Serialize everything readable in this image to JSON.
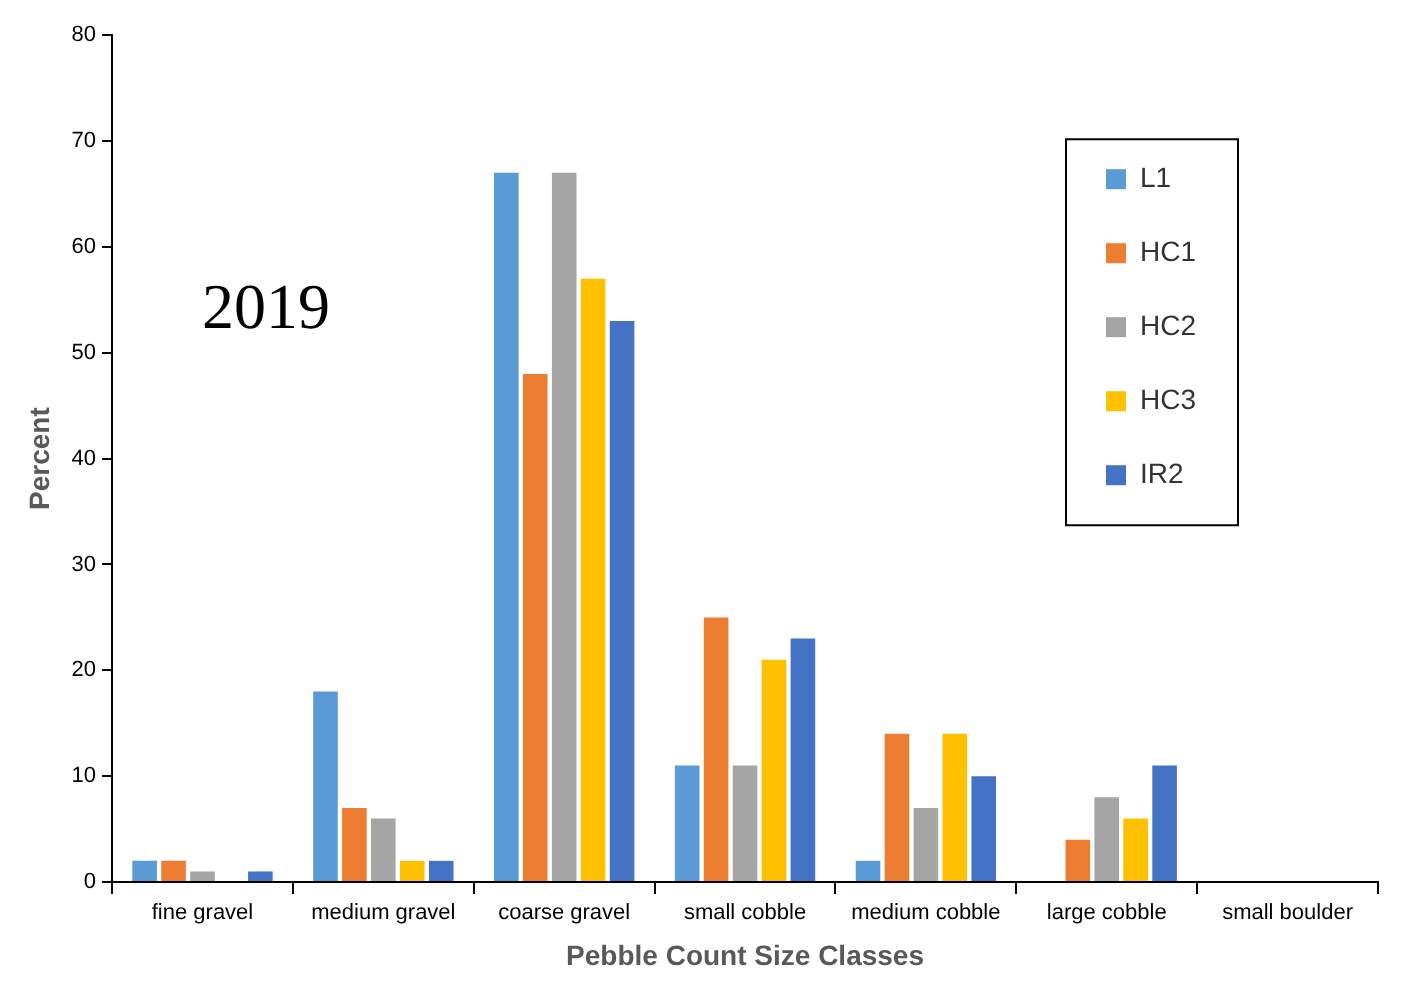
{
  "chart_data": {
    "type": "bar",
    "xlabel": "Pebble Count Size Classes",
    "ylabel": "Percent",
    "annotations": [
      "2019"
    ],
    "categories": [
      "fine gravel",
      "medium gravel",
      "coarse gravel",
      "small cobble",
      "medium cobble",
      "large cobble",
      "small boulder"
    ],
    "series": [
      {
        "name": "L1",
        "color": "#5b9bd5",
        "values": [
          2,
          18,
          67,
          11,
          2,
          0,
          0
        ]
      },
      {
        "name": "HC1",
        "color": "#ed7d31",
        "values": [
          2,
          7,
          48,
          25,
          14,
          4,
          0
        ]
      },
      {
        "name": "HC2",
        "color": "#a5a5a5",
        "values": [
          1,
          6,
          67,
          11,
          7,
          8,
          0
        ]
      },
      {
        "name": "HC3",
        "color": "#ffc000",
        "values": [
          0,
          2,
          57,
          21,
          14,
          6,
          0
        ]
      },
      {
        "name": "IR2",
        "color": "#4472c4",
        "values": [
          1,
          2,
          53,
          23,
          10,
          11,
          0
        ]
      }
    ],
    "ylim": [
      0,
      80
    ],
    "yticks": [
      0,
      10,
      20,
      30,
      40,
      50,
      60,
      70,
      80
    ],
    "grid": false,
    "legend": "top right"
  }
}
